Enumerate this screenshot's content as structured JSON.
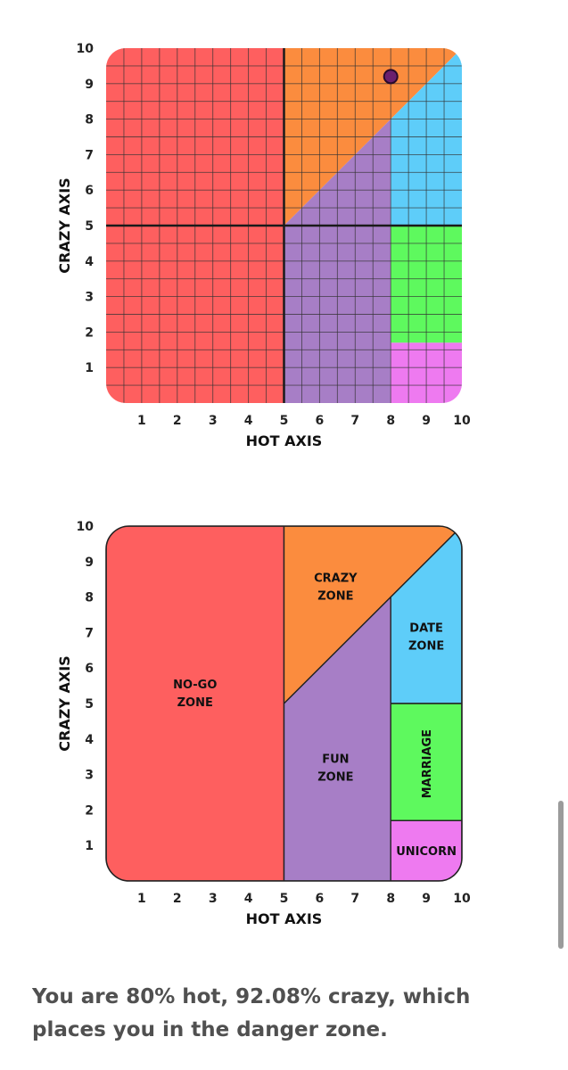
{
  "colors": {
    "nogo": "#fe5f5f",
    "crazy": "#fb8c3e",
    "fun": "#a77ec6",
    "date": "#5ecdf9",
    "marriage": "#5ef95e",
    "unicorn": "#ee7af0",
    "marker": "#6b1f6e",
    "grid": "#333333",
    "border": "#222222"
  },
  "chart_data": [
    {
      "type": "scatter",
      "title": "",
      "xlabel": "HOT AXIS",
      "ylabel": "CRAZY AXIS",
      "xlim": [
        0,
        10
      ],
      "ylim": [
        0,
        10
      ],
      "x_ticks": [
        "1",
        "2",
        "3",
        "4",
        "5",
        "6",
        "7",
        "8",
        "9",
        "10"
      ],
      "y_ticks": [
        "1",
        "2",
        "3",
        "4",
        "5",
        "6",
        "7",
        "8",
        "9",
        "10"
      ],
      "grid": true,
      "point": {
        "x": 8,
        "y": 9.2
      }
    },
    {
      "type": "area",
      "title": "",
      "xlabel": "HOT AXIS",
      "ylabel": "CRAZY AXIS",
      "xlim": [
        0,
        10
      ],
      "ylim": [
        0,
        10
      ],
      "x_ticks": [
        "1",
        "2",
        "3",
        "4",
        "5",
        "6",
        "7",
        "8",
        "9",
        "10"
      ],
      "y_ticks": [
        "1",
        "2",
        "3",
        "4",
        "5",
        "6",
        "7",
        "8",
        "9",
        "10"
      ],
      "grid": false,
      "zones": [
        {
          "key": "nogo",
          "label": "NO-GO\nZONE",
          "poly": [
            [
              0,
              0
            ],
            [
              5,
              0
            ],
            [
              5,
              10
            ],
            [
              0,
              10
            ]
          ]
        },
        {
          "key": "crazy",
          "label": "CRAZY\nZONE",
          "poly": [
            [
              5,
              5
            ],
            [
              5,
              10
            ],
            [
              10,
              10
            ]
          ]
        },
        {
          "key": "fun",
          "label": "FUN\nZONE",
          "poly": [
            [
              5,
              0
            ],
            [
              8,
              0
            ],
            [
              8,
              8
            ],
            [
              5,
              5
            ]
          ]
        },
        {
          "key": "date",
          "label": "DATE\nZONE",
          "poly": [
            [
              8,
              5
            ],
            [
              10,
              5
            ],
            [
              10,
              10
            ],
            [
              8,
              8
            ]
          ]
        },
        {
          "key": "marriage",
          "label": "MARRIAGE",
          "poly": [
            [
              8,
              1.7
            ],
            [
              10,
              1.7
            ],
            [
              10,
              5
            ],
            [
              8,
              5
            ]
          ]
        },
        {
          "key": "unicorn",
          "label": "UNICORN",
          "poly": [
            [
              8,
              0
            ],
            [
              10,
              0
            ],
            [
              10,
              1.7
            ],
            [
              8,
              1.7
            ]
          ]
        }
      ]
    }
  ],
  "result_text": "You are 80% hot, 92.08% crazy, which places you in the danger zone."
}
